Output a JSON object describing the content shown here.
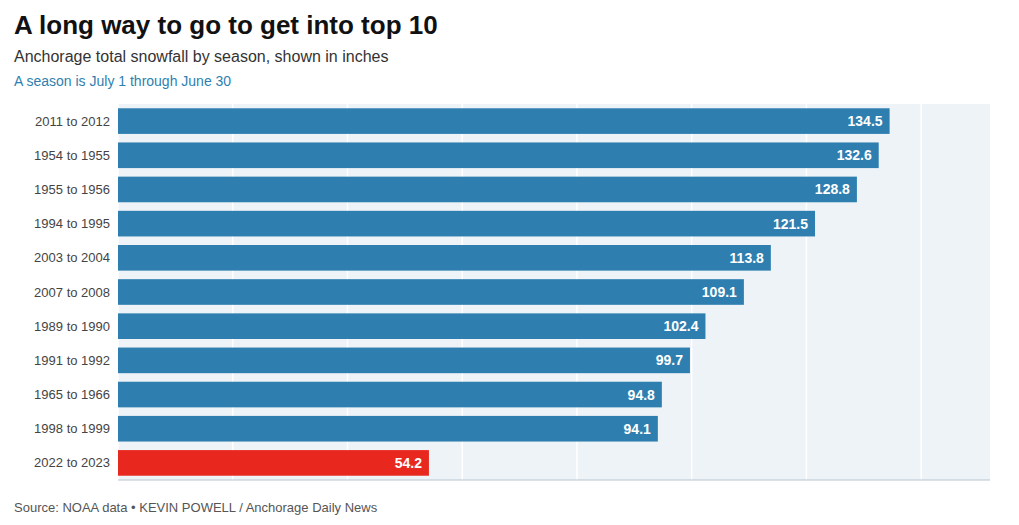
{
  "chart_data": {
    "type": "bar",
    "orientation": "horizontal",
    "title": "A long way to go to get into top 10",
    "subtitle": "Anchorage total snowfall by season, shown in inches",
    "note": "A season is July 1 through June 30",
    "source": "Source: NOAA data • KEVIN POWELL / Anchorage Daily News",
    "categories": [
      "2011 to 2012",
      "1954 to 1955",
      "1955 to 1956",
      "1994 to 1995",
      "2003 to 2004",
      "2007 to 2008",
      "1989 to 1990",
      "1991 to 1992",
      "1965 to 1966",
      "1998 to 1999",
      "2022 to 2023"
    ],
    "values": [
      134.5,
      132.6,
      128.8,
      121.5,
      113.8,
      109.1,
      102.4,
      99.7,
      94.8,
      94.1,
      54.2
    ],
    "colors": [
      "#2e7fb0",
      "#2e7fb0",
      "#2e7fb0",
      "#2e7fb0",
      "#2e7fb0",
      "#2e7fb0",
      "#2e7fb0",
      "#2e7fb0",
      "#2e7fb0",
      "#2e7fb0",
      "#e8281e"
    ],
    "xlim": [
      0,
      152
    ],
    "xticks": [
      0,
      20,
      40,
      60,
      80,
      100,
      120,
      140
    ],
    "grid": true,
    "tick_labels": false,
    "data_labels": true
  }
}
